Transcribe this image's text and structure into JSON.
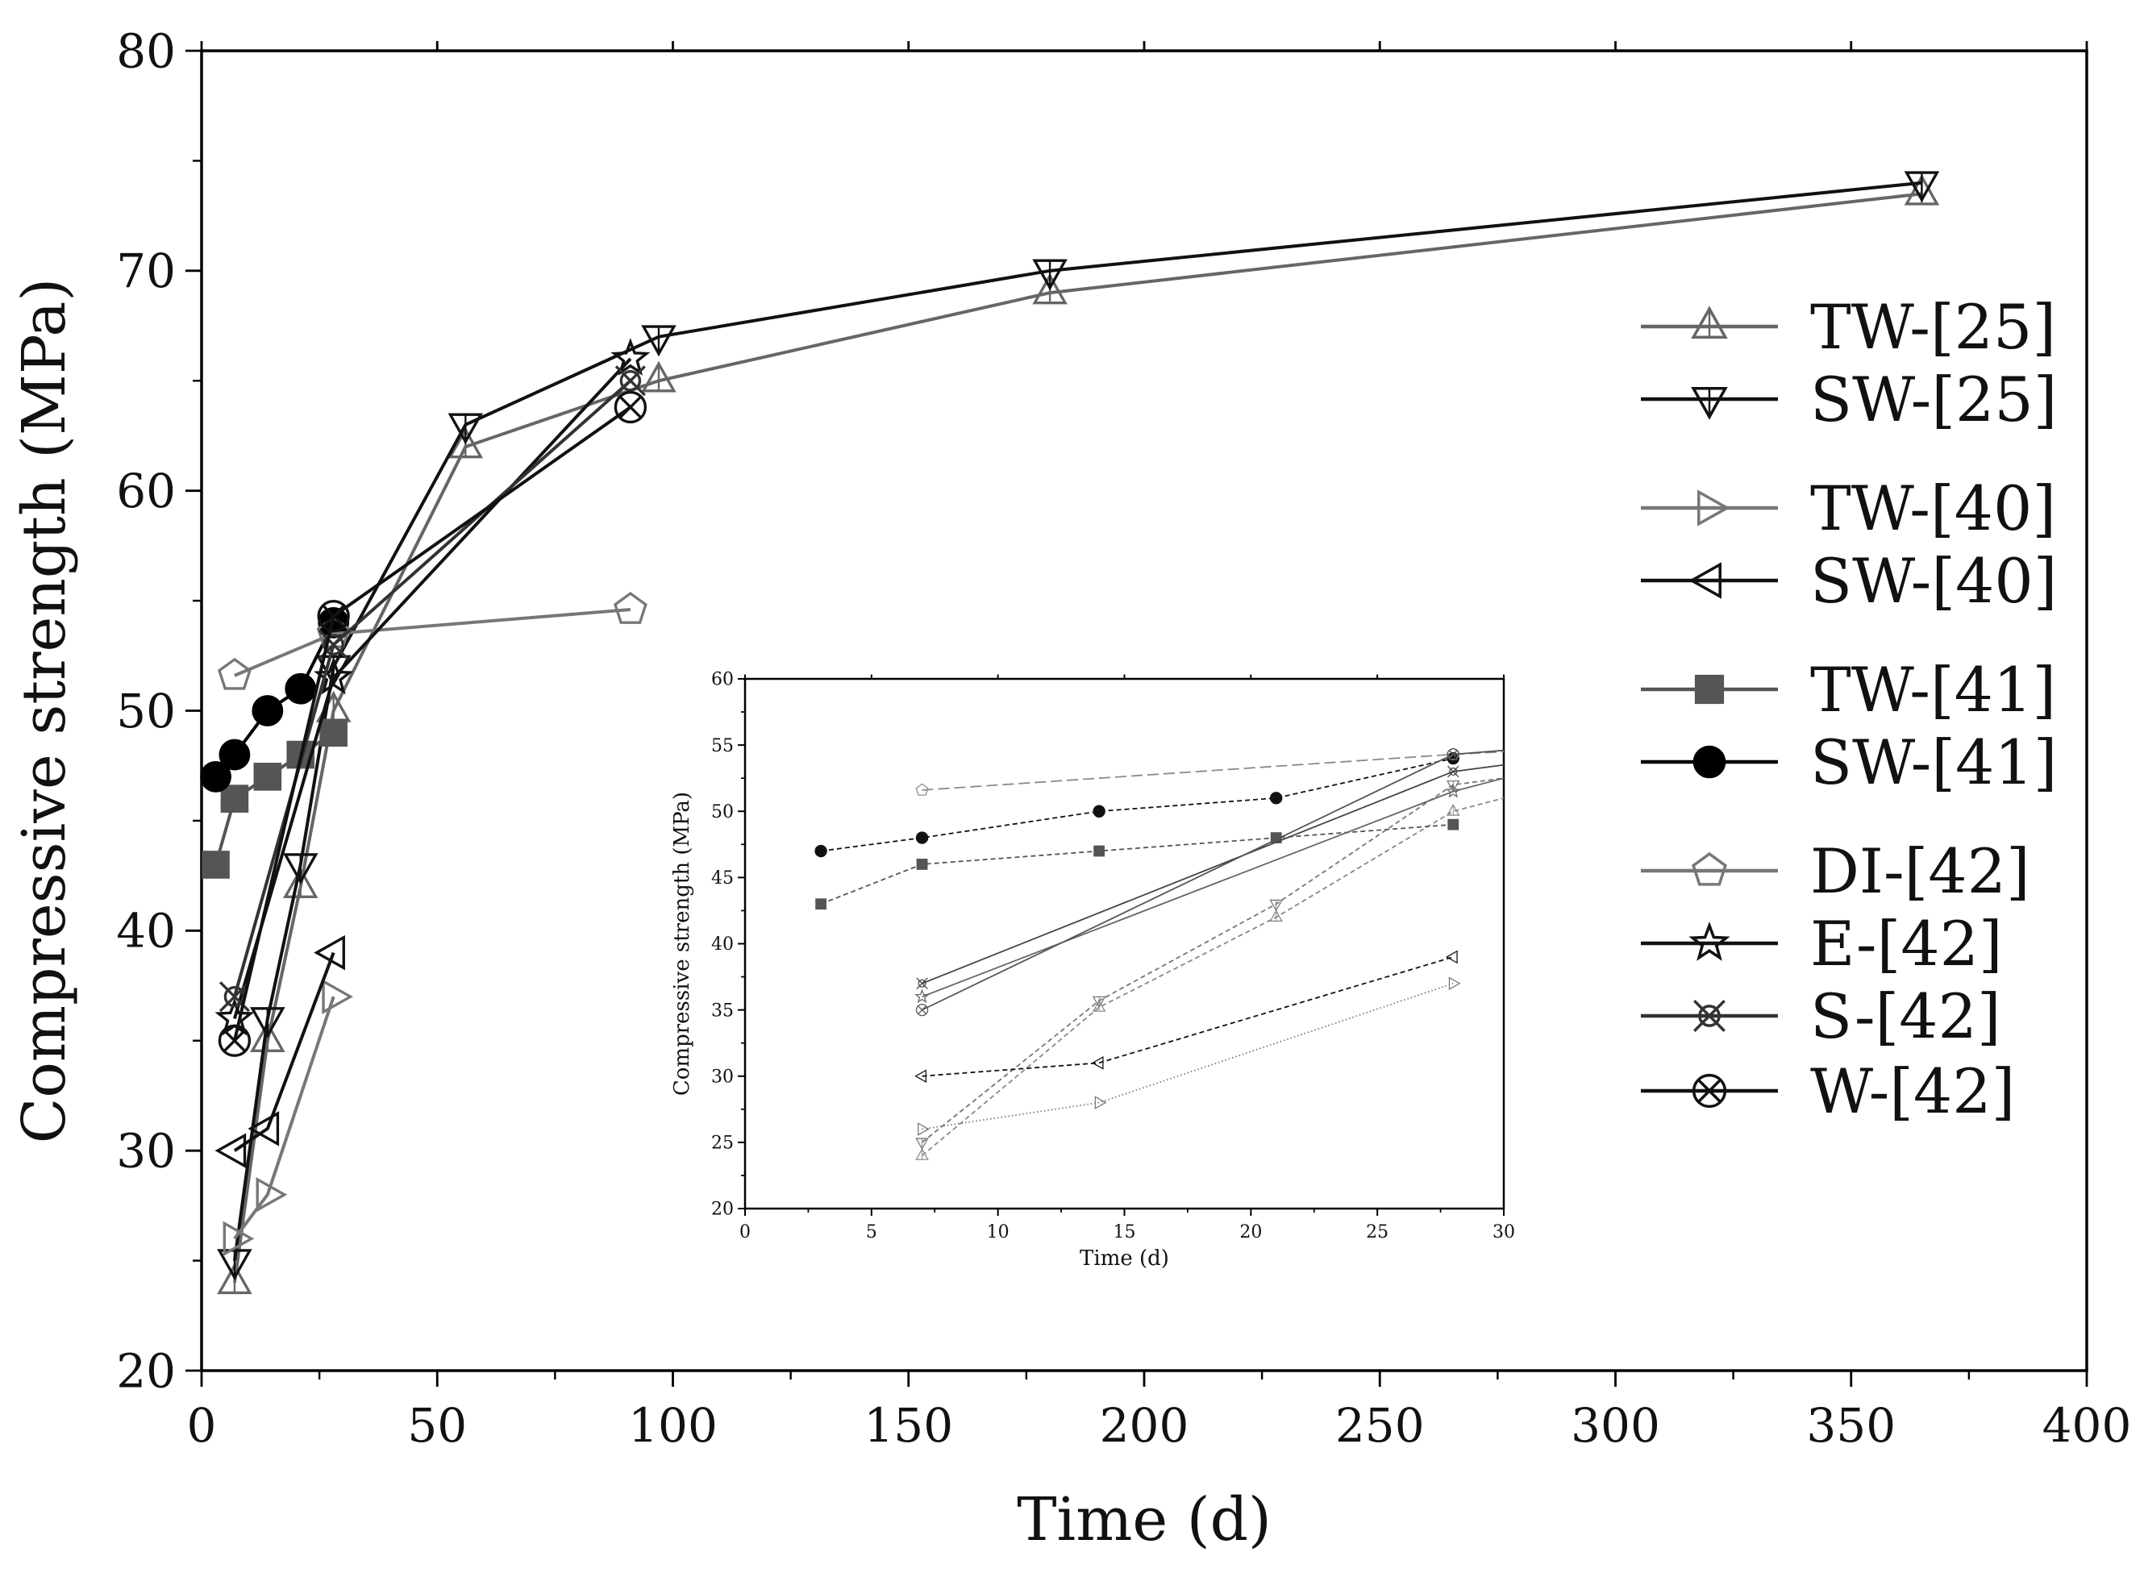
{
  "chart_data": [
    {
      "type": "line",
      "title": "",
      "xlabel": "Time (d)",
      "ylabel": "Compressive strength (MPa)",
      "xlim": [
        0,
        400
      ],
      "ylim": [
        20,
        80
      ],
      "xticks": [
        0,
        50,
        100,
        150,
        200,
        250,
        300,
        350,
        400
      ],
      "yticks": [
        20,
        30,
        40,
        50,
        60,
        70,
        80
      ],
      "grid": false,
      "legend_position": "right",
      "series": [
        {
          "name": "TW-[25]",
          "marker": "triangle-up",
          "color": "#666666",
          "x": [
            7,
            14,
            21,
            28,
            56,
            97,
            180,
            365
          ],
          "y": [
            24,
            35,
            42,
            50,
            62,
            65,
            69,
            73.5
          ]
        },
        {
          "name": "SW-[25]",
          "marker": "triangle-down",
          "color": "#111111",
          "x": [
            7,
            14,
            21,
            28,
            56,
            97,
            180,
            365
          ],
          "y": [
            25,
            36,
            43,
            52,
            63,
            67,
            70,
            74
          ]
        },
        {
          "name": "TW-[40]",
          "marker": "triangle-right",
          "color": "#777777",
          "x": [
            7,
            14,
            28
          ],
          "y": [
            26,
            28,
            37
          ]
        },
        {
          "name": "SW-[40]",
          "marker": "triangle-left",
          "color": "#111111",
          "x": [
            7,
            14,
            28
          ],
          "y": [
            30,
            31,
            39
          ]
        },
        {
          "name": "TW-[41]",
          "marker": "square-filled",
          "color": "#555555",
          "x": [
            3,
            7,
            14,
            21,
            28
          ],
          "y": [
            43,
            46,
            47,
            48,
            49
          ]
        },
        {
          "name": "SW-[41]",
          "marker": "circle-filled",
          "color": "#000000",
          "x": [
            3,
            7,
            14,
            21,
            28
          ],
          "y": [
            47,
            48,
            50,
            51,
            54
          ]
        },
        {
          "name": "DI-[42]",
          "marker": "pentagon",
          "color": "#777777",
          "x": [
            7,
            28,
            91
          ],
          "y": [
            51.6,
            53.5,
            54.6
          ]
        },
        {
          "name": "E-[42]",
          "marker": "star",
          "color": "#111111",
          "x": [
            7,
            28,
            91
          ],
          "y": [
            36,
            51.5,
            66
          ]
        },
        {
          "name": "S-[42]",
          "marker": "x-circle",
          "color": "#333333",
          "x": [
            7,
            28,
            91
          ],
          "y": [
            37,
            53,
            65
          ]
        },
        {
          "name": "W-[42]",
          "marker": "circle-x",
          "color": "#111111",
          "x": [
            7,
            28,
            91
          ],
          "y": [
            35,
            54.3,
            63.8
          ]
        }
      ]
    },
    {
      "type": "line",
      "title": "",
      "xlabel": "Time (d)",
      "ylabel": "Compressive strength (MPa)",
      "xlim": [
        0,
        30
      ],
      "ylim": [
        20,
        60
      ],
      "xticks": [
        0,
        5,
        10,
        15,
        20,
        25,
        30
      ],
      "yticks": [
        20,
        25,
        30,
        35,
        40,
        45,
        50,
        55,
        60
      ],
      "grid": false,
      "legend_position": "none",
      "series": [
        {
          "name": "TW-[25]",
          "marker": "triangle-up",
          "color": "#888888",
          "dash": "dashed",
          "x": [
            7,
            14,
            21,
            28,
            30
          ],
          "y": [
            24,
            35.2,
            42,
            50,
            51
          ]
        },
        {
          "name": "SW-[25]",
          "marker": "triangle-down",
          "color": "#777777",
          "dash": "dashed",
          "x": [
            7,
            14,
            21,
            28,
            30
          ],
          "y": [
            25,
            35.7,
            43,
            52,
            52.5
          ]
        },
        {
          "name": "TW-[40]",
          "marker": "triangle-right",
          "color": "#777777",
          "dash": "dotted",
          "x": [
            7,
            14,
            28
          ],
          "y": [
            26,
            28,
            37
          ]
        },
        {
          "name": "SW-[40]",
          "marker": "triangle-left",
          "color": "#111111",
          "dash": "dashed",
          "x": [
            7,
            14,
            28
          ],
          "y": [
            30,
            31,
            39
          ]
        },
        {
          "name": "TW-[41]",
          "marker": "square-filled",
          "color": "#555555",
          "dash": "dashed",
          "x": [
            3,
            7,
            14,
            21,
            28
          ],
          "y": [
            43,
            46,
            47,
            48,
            49
          ]
        },
        {
          "name": "SW-[41]",
          "marker": "circle-filled",
          "color": "#111111",
          "dash": "dashed",
          "x": [
            3,
            7,
            14,
            21,
            28
          ],
          "y": [
            47,
            48,
            50,
            51,
            54
          ]
        },
        {
          "name": "DI-[42]",
          "marker": "pentagon",
          "color": "#888888",
          "dash": "long-dash",
          "x": [
            7,
            28,
            30
          ],
          "y": [
            51.6,
            54.3,
            54.5
          ]
        },
        {
          "name": "E-[42]",
          "marker": "star",
          "color": "#666666",
          "dash": "solid",
          "x": [
            7,
            28,
            30
          ],
          "y": [
            36,
            51.5,
            52.5
          ]
        },
        {
          "name": "S-[42]",
          "marker": "x-circle",
          "color": "#444444",
          "dash": "solid",
          "x": [
            7,
            28,
            30
          ],
          "y": [
            37,
            53,
            53.5
          ]
        },
        {
          "name": "W-[42]",
          "marker": "circle-x",
          "color": "#555555",
          "dash": "solid",
          "x": [
            7,
            28,
            30
          ],
          "y": [
            35,
            54.3,
            54.6
          ]
        }
      ]
    }
  ]
}
